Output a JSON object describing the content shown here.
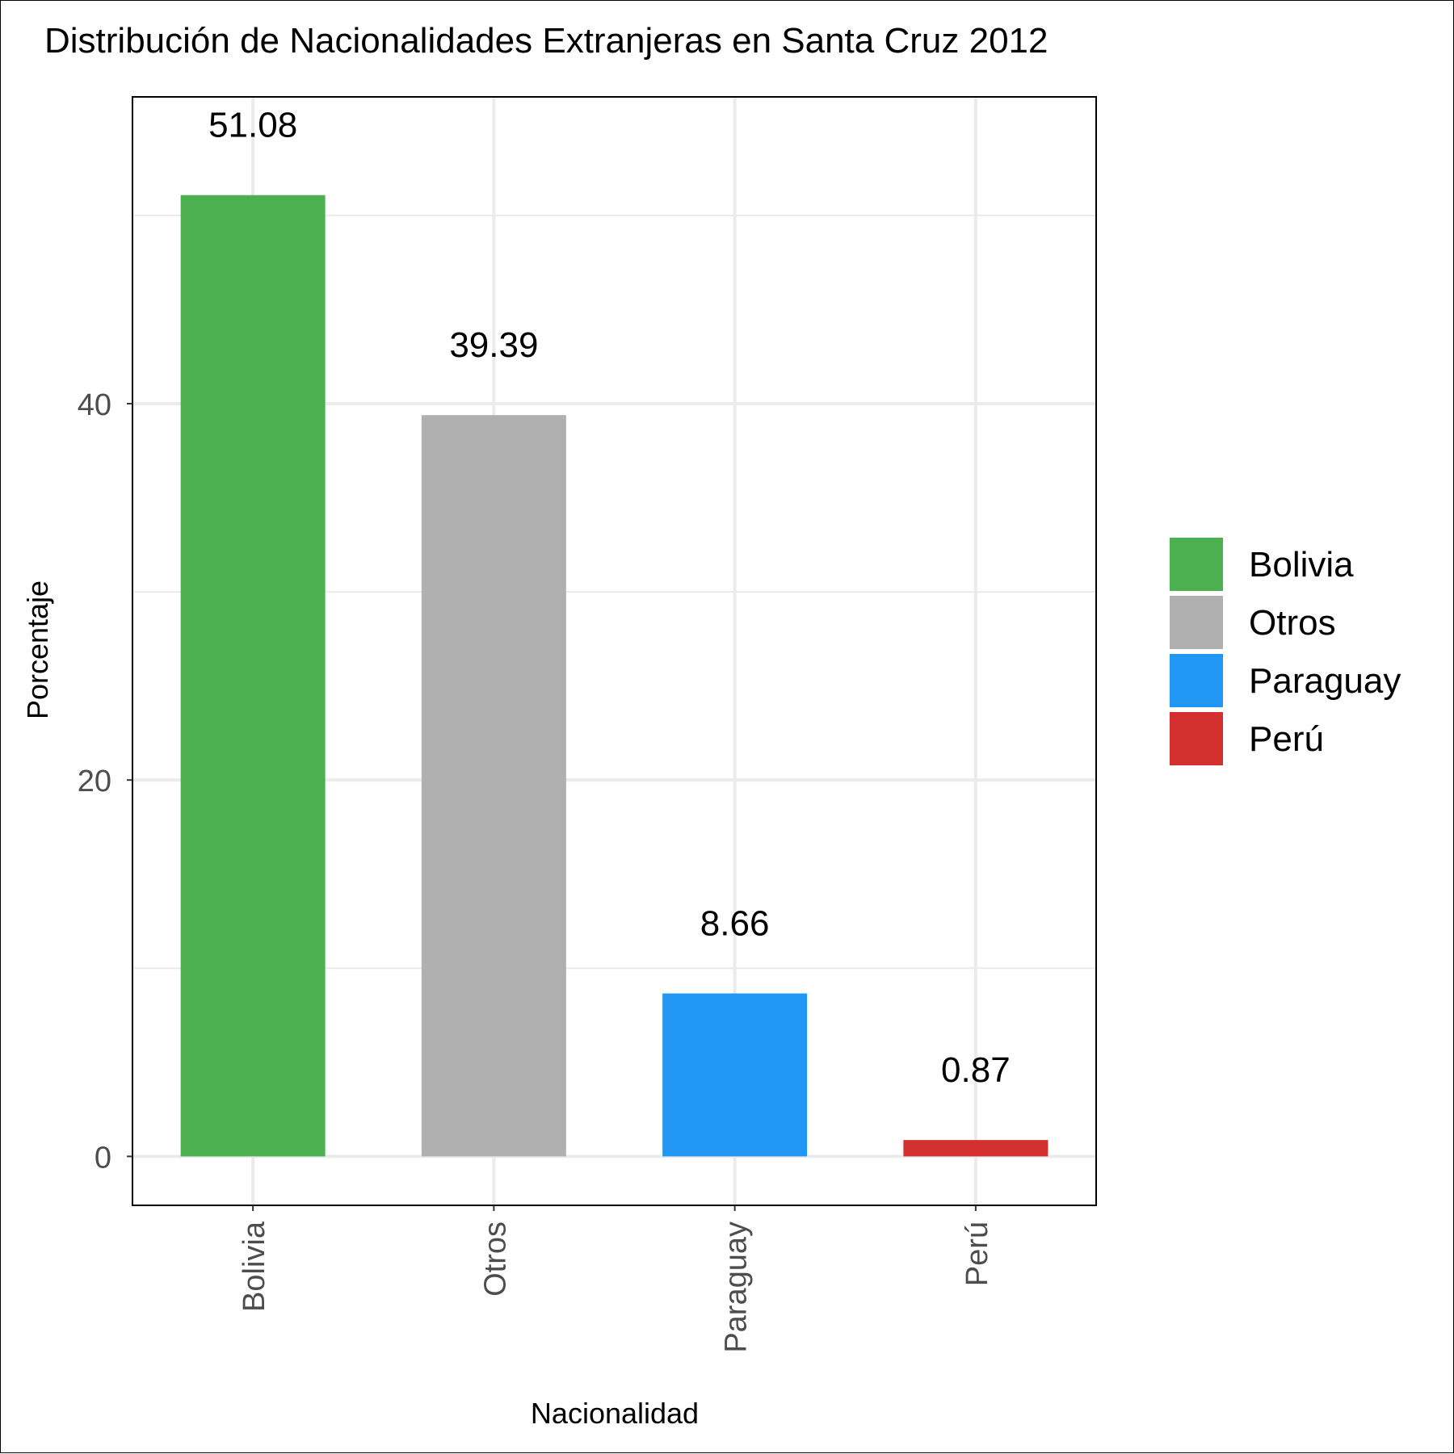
{
  "chart_data": {
    "type": "bar",
    "title": "Distribución de Nacionalidades Extranjeras en Santa Cruz 2012",
    "xlabel": "Nacionalidad",
    "ylabel": "Porcentaje",
    "categories": [
      "Bolivia",
      "Otros",
      "Paraguay",
      "Perú"
    ],
    "values": [
      51.08,
      39.39,
      8.66,
      0.87
    ],
    "value_labels": [
      "51.08",
      "39.39",
      "8.66",
      "0.87"
    ],
    "colors": [
      "#4caf50",
      "#b0b0b0",
      "#2196f3",
      "#d32f2f"
    ],
    "yticks": [
      0,
      20,
      40
    ],
    "ylim": [
      -2.6,
      56.3
    ],
    "grid": true,
    "legend": {
      "position": "right",
      "entries": [
        "Bolivia",
        "Otros",
        "Paraguay",
        "Perú"
      ]
    }
  }
}
